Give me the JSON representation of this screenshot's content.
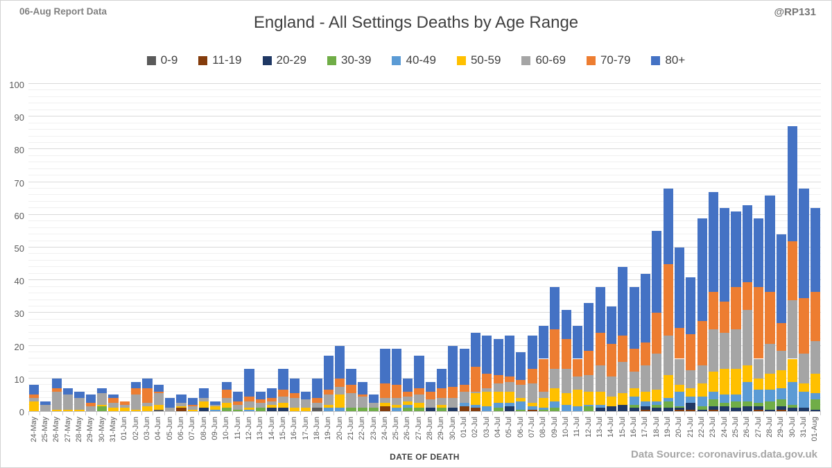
{
  "header": {
    "report_note": "06-Aug Report Data",
    "handle": "@RP131"
  },
  "footer": {
    "source": "Data Source: coronavirus.data.gov.uk"
  },
  "chart_data": {
    "type": "bar",
    "subtype": "stacked",
    "title": "England - All Settings Deaths by Age Range",
    "xlabel": "DATE OF DEATH",
    "ylabel": "",
    "ylim": [
      0,
      100
    ],
    "major_step": 10,
    "minor_step": 2,
    "grid": true,
    "legend_position": "top",
    "categories": [
      "24-May",
      "25-May",
      "26-May",
      "27-May",
      "28-May",
      "29-May",
      "30-May",
      "31-May",
      "01-Jun",
      "02-Jun",
      "03-Jun",
      "04-Jun",
      "05-Jun",
      "06-Jun",
      "07-Jun",
      "08-Jun",
      "09-Jun",
      "10-Jun",
      "11-Jun",
      "12-Jun",
      "13-Jun",
      "14-Jun",
      "15-Jun",
      "16-Jun",
      "17-Jun",
      "18-Jun",
      "19-Jun",
      "20-Jun",
      "21-Jun",
      "22-Jun",
      "23-Jun",
      "24-Jun",
      "25-Jun",
      "26-Jun",
      "27-Jun",
      "28-Jun",
      "29-Jun",
      "30-Jun",
      "01-Jul",
      "02-Jul",
      "03-Jul",
      "04-Jul",
      "05-Jul",
      "06-Jul",
      "07-Jul",
      "08-Jul",
      "09-Jul",
      "10-Jul",
      "11-Jul",
      "12-Jul",
      "13-Jul",
      "14-Jul",
      "15-Jul",
      "16-Jul",
      "17-Jul",
      "18-Jul",
      "19-Jul",
      "20-Jul",
      "21-Jul",
      "22-Jul",
      "23-Jul",
      "24-Jul",
      "25-Jul",
      "26-Jul",
      "27-Jul",
      "28-Jul",
      "29-Jul",
      "30-Jul",
      "31-Jul",
      "01-Aug"
    ],
    "series": [
      {
        "name": "0-9",
        "color": "#5a5a5a",
        "values": [
          0,
          0,
          0,
          0,
          0,
          0,
          0,
          0,
          0,
          0,
          0,
          0.5,
          0,
          0,
          0,
          0,
          0,
          0,
          0,
          0,
          0,
          0,
          0,
          0,
          0,
          1,
          0,
          0,
          0,
          0,
          0,
          0,
          0,
          0,
          0,
          0,
          0,
          0,
          0,
          0,
          0,
          0,
          0,
          0,
          0,
          0,
          0,
          0,
          0,
          0,
          0,
          0,
          0,
          0,
          0,
          0,
          0,
          0,
          0,
          0,
          0,
          0,
          0,
          0,
          0,
          0,
          0,
          0,
          0,
          0
        ]
      },
      {
        "name": "11-19",
        "color": "#843c0c",
        "values": [
          0,
          0,
          0,
          0,
          0,
          0,
          0,
          0,
          0,
          0,
          0,
          0,
          0,
          1,
          0,
          0,
          0,
          0,
          0,
          0,
          0,
          0,
          0,
          0,
          0,
          0,
          0,
          0,
          0,
          0,
          0,
          1.5,
          0,
          0,
          0,
          0,
          0,
          0,
          1.5,
          1,
          0,
          0,
          0,
          0,
          0.5,
          0,
          0,
          0,
          0,
          0,
          0,
          0,
          0,
          0,
          0.5,
          0,
          0,
          0.5,
          0.5,
          0,
          0.5,
          0,
          0,
          0,
          0.5,
          0,
          0.5,
          0,
          0,
          0
        ]
      },
      {
        "name": "20-29",
        "color": "#1f3864",
        "values": [
          0,
          0,
          0,
          0,
          0,
          0,
          0,
          0,
          0,
          0,
          0,
          0,
          0,
          0,
          0,
          1,
          0,
          0,
          0,
          0,
          0,
          1,
          1,
          0,
          0,
          0,
          0,
          0,
          0,
          0,
          0,
          0,
          0,
          0,
          0,
          1,
          0,
          1,
          0,
          0,
          0,
          0,
          1.5,
          0,
          0,
          0,
          0,
          0,
          0,
          0,
          1,
          1.5,
          2,
          1,
          1,
          1,
          1,
          0.5,
          2,
          0.5,
          1,
          1.5,
          1,
          1.5,
          1,
          0.5,
          1,
          1,
          1,
          0.5
        ]
      },
      {
        "name": "30-39",
        "color": "#70ad47",
        "values": [
          0,
          0,
          0,
          0,
          0,
          0,
          1.5,
          0,
          0,
          0,
          0,
          0,
          0,
          0,
          0,
          0,
          0,
          1,
          0.5,
          0,
          1,
          0,
          0,
          0,
          0,
          0,
          0,
          0,
          1,
          1,
          1,
          0,
          0,
          1,
          1,
          0,
          1,
          0,
          0,
          0,
          0,
          1,
          0,
          0.5,
          0,
          0.5,
          1,
          0,
          0,
          1.5,
          0,
          0,
          0,
          1,
          0,
          1,
          2,
          0.5,
          0,
          1,
          2,
          1,
          2,
          1.5,
          1,
          2.5,
          2,
          1,
          0,
          3
        ]
      },
      {
        "name": "40-49",
        "color": "#5b9bd5",
        "values": [
          0,
          0,
          0,
          0,
          0,
          0,
          0,
          0,
          0,
          0,
          0,
          0,
          0,
          0,
          0,
          0,
          0.5,
          0,
          0,
          0.5,
          0,
          0,
          0,
          0,
          0,
          0,
          1,
          1,
          0,
          0,
          0,
          0,
          1,
          1,
          0,
          0,
          0,
          0,
          1,
          1,
          1.5,
          1.5,
          1,
          2.5,
          1,
          0.5,
          2,
          2,
          1.5,
          0.5,
          1,
          0,
          0,
          2.5,
          1.5,
          1,
          1,
          4.5,
          2,
          3,
          2.5,
          2.5,
          2,
          6,
          4,
          3.5,
          3.5,
          7,
          5,
          2
        ]
      },
      {
        "name": "50-59",
        "color": "#ffc000",
        "values": [
          3,
          0,
          0.5,
          0.5,
          0.5,
          0,
          0.5,
          1,
          1,
          0.5,
          1.5,
          1.5,
          0,
          0.5,
          0.5,
          2,
          1,
          1.5,
          0,
          0.5,
          0,
          1,
          1.5,
          1,
          1,
          0,
          1,
          4,
          0,
          0,
          0,
          1,
          1,
          1,
          1.5,
          0,
          1,
          0,
          0,
          3.5,
          4.5,
          3.5,
          3.5,
          1,
          1,
          3,
          4,
          3.5,
          5,
          4,
          4,
          3,
          3.5,
          2.5,
          3,
          3.5,
          7,
          2,
          2.5,
          4,
          6,
          8,
          8,
          5,
          3.5,
          5,
          5.5,
          7,
          2.5,
          6
        ]
      },
      {
        "name": "60-69",
        "color": "#a5a5a5",
        "values": [
          1,
          2,
          5.5,
          4.5,
          3.5,
          1.5,
          3.5,
          1.5,
          1,
          4.5,
          1,
          3.5,
          1,
          1,
          1,
          1,
          0.5,
          1.5,
          1.5,
          2,
          1.5,
          1,
          2,
          3,
          2.5,
          1.5,
          3,
          2.5,
          4.5,
          3.5,
          1.5,
          1.5,
          2,
          1.5,
          2.5,
          2.5,
          2,
          3,
          3.5,
          0.5,
          1,
          2.5,
          3,
          4,
          6,
          2,
          6,
          7.5,
          4,
          5,
          8,
          6,
          9.5,
          5,
          8,
          11,
          12,
          8,
          5.5,
          5.5,
          13,
          11,
          12,
          17,
          6,
          9,
          6,
          18,
          9,
          10
        ]
      },
      {
        "name": "70-79",
        "color": "#ed7d31",
        "values": [
          1,
          0,
          1,
          0,
          0,
          1,
          0,
          1.5,
          1,
          2,
          4.5,
          0.5,
          0,
          0,
          0.5,
          0,
          0,
          2.5,
          1,
          1.5,
          1,
          1,
          2,
          1.5,
          0,
          1.5,
          1.5,
          2.5,
          2.5,
          0.5,
          0,
          4.5,
          4,
          1.5,
          2,
          2.5,
          3,
          3.5,
          2,
          7.5,
          4.5,
          2.5,
          1.5,
          1.5,
          4.5,
          10,
          12,
          9,
          5.5,
          7.5,
          10,
          10,
          8,
          7,
          7,
          12.5,
          22,
          9.5,
          11,
          13.5,
          11.5,
          9.5,
          13,
          8.5,
          22,
          16,
          8.5,
          18,
          17,
          15
        ]
      },
      {
        "name": "80+",
        "color": "#4472c4",
        "values": [
          3,
          1,
          3,
          2,
          2,
          2.5,
          1.5,
          1,
          0,
          2,
          3,
          2,
          3,
          2.5,
          2,
          3,
          1,
          2.5,
          3,
          8.5,
          2.5,
          3,
          6.5,
          4.5,
          2.5,
          6,
          10.5,
          10,
          5,
          4,
          2.5,
          10.5,
          11,
          4,
          10,
          3,
          6,
          12.5,
          11,
          10.5,
          11.5,
          11,
          12.5,
          8.5,
          10,
          10,
          13,
          9,
          10,
          14.5,
          14,
          11.5,
          21,
          19,
          21,
          25,
          23,
          24.5,
          17.5,
          31.5,
          30.5,
          28.5,
          23,
          23.5,
          21,
          29.5,
          27,
          35,
          33.5,
          25.5
        ]
      }
    ]
  }
}
